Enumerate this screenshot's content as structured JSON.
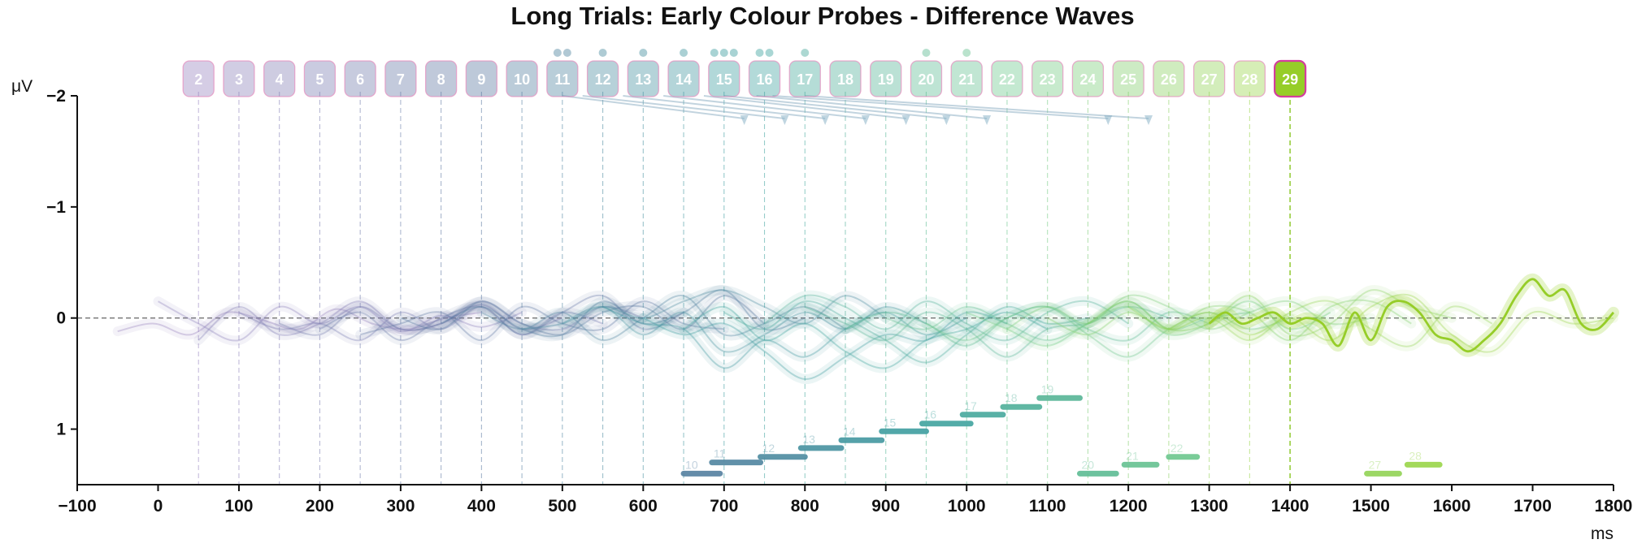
{
  "chart_data": {
    "type": "line",
    "title": "Long Trials: Early Colour Probes - Difference Waves",
    "xlabel": "ms",
    "ylabel": "μV",
    "xlim": [
      -100,
      1800
    ],
    "ylim": [
      1.5,
      -2
    ],
    "y_inverted": true,
    "x_ticks": [
      -100,
      0,
      100,
      200,
      300,
      400,
      500,
      600,
      700,
      800,
      900,
      1000,
      1100,
      1200,
      1300,
      1400,
      1500,
      1600,
      1700,
      1800
    ],
    "y_ticks": [
      -2,
      -1,
      0,
      1
    ],
    "y_tick_labels": [
      "−2",
      "−1",
      "0",
      "1"
    ],
    "x_tick_labels": [
      "−100",
      "0",
      "100",
      "200",
      "300",
      "400",
      "500",
      "600",
      "700",
      "800",
      "900",
      "1000",
      "1100",
      "1200",
      "1300",
      "1400",
      "1500",
      "1600",
      "1700",
      "1800"
    ],
    "grid": false,
    "zero_line": true,
    "highlighted_probe": 29,
    "probes": [
      {
        "label": "2",
        "onset_ms": 50
      },
      {
        "label": "3",
        "onset_ms": 100
      },
      {
        "label": "4",
        "onset_ms": 150
      },
      {
        "label": "5",
        "onset_ms": 200
      },
      {
        "label": "6",
        "onset_ms": 250
      },
      {
        "label": "7",
        "onset_ms": 300
      },
      {
        "label": "8",
        "onset_ms": 350
      },
      {
        "label": "9",
        "onset_ms": 400
      },
      {
        "label": "10",
        "onset_ms": 450
      },
      {
        "label": "11",
        "onset_ms": 500
      },
      {
        "label": "12",
        "onset_ms": 550
      },
      {
        "label": "13",
        "onset_ms": 600
      },
      {
        "label": "14",
        "onset_ms": 650
      },
      {
        "label": "15",
        "onset_ms": 700
      },
      {
        "label": "16",
        "onset_ms": 750
      },
      {
        "label": "17",
        "onset_ms": 800
      },
      {
        "label": "18",
        "onset_ms": 850
      },
      {
        "label": "19",
        "onset_ms": 900
      },
      {
        "label": "20",
        "onset_ms": 950
      },
      {
        "label": "21",
        "onset_ms": 1000
      },
      {
        "label": "22",
        "onset_ms": 1050
      },
      {
        "label": "23",
        "onset_ms": 1100
      },
      {
        "label": "24",
        "onset_ms": 1150
      },
      {
        "label": "25",
        "onset_ms": 1200
      },
      {
        "label": "26",
        "onset_ms": 1250
      },
      {
        "label": "27",
        "onset_ms": 1300
      },
      {
        "label": "28",
        "onset_ms": 1350
      },
      {
        "label": "29",
        "onset_ms": 1400
      }
    ],
    "probe_dots": [
      {
        "probe": "11",
        "count": 2
      },
      {
        "probe": "12",
        "count": 1
      },
      {
        "probe": "13",
        "count": 1
      },
      {
        "probe": "14",
        "count": 1
      },
      {
        "probe": "15",
        "count": 3
      },
      {
        "probe": "16",
        "count": 2
      },
      {
        "probe": "17",
        "count": 1
      },
      {
        "probe": "20",
        "count": 1
      },
      {
        "probe": "21",
        "count": 1
      }
    ],
    "arrows": [
      {
        "from_ms": 500,
        "to_ms": 725
      },
      {
        "from_ms": 525,
        "to_ms": 775
      },
      {
        "from_ms": 575,
        "to_ms": 825
      },
      {
        "from_ms": 625,
        "to_ms": 875
      },
      {
        "from_ms": 675,
        "to_ms": 925
      },
      {
        "from_ms": 700,
        "to_ms": 975
      },
      {
        "from_ms": 740,
        "to_ms": 1025
      },
      {
        "from_ms": 760,
        "to_ms": 1175
      },
      {
        "from_ms": 800,
        "to_ms": 1225
      }
    ],
    "significance_segments": [
      {
        "label": "10",
        "start": 650,
        "end": 695,
        "y": 1.4
      },
      {
        "label": "11",
        "start": 685,
        "end": 745,
        "y": 1.3
      },
      {
        "label": "12",
        "start": 745,
        "end": 800,
        "y": 1.25
      },
      {
        "label": "13",
        "start": 795,
        "end": 845,
        "y": 1.17
      },
      {
        "label": "14",
        "start": 845,
        "end": 895,
        "y": 1.1
      },
      {
        "label": "15",
        "start": 895,
        "end": 950,
        "y": 1.02
      },
      {
        "label": "16",
        "start": 945,
        "end": 1005,
        "y": 0.95
      },
      {
        "label": "17",
        "start": 995,
        "end": 1045,
        "y": 0.87
      },
      {
        "label": "18",
        "start": 1045,
        "end": 1090,
        "y": 0.8
      },
      {
        "label": "19",
        "start": 1090,
        "end": 1140,
        "y": 0.72
      },
      {
        "label": "20",
        "start": 1140,
        "end": 1185,
        "y": 1.4
      },
      {
        "label": "21",
        "start": 1195,
        "end": 1235,
        "y": 1.32
      },
      {
        "label": "22",
        "start": 1250,
        "end": 1285,
        "y": 1.25
      },
      {
        "label": "27",
        "start": 1495,
        "end": 1535,
        "y": 1.4
      },
      {
        "label": "28",
        "start": 1545,
        "end": 1585,
        "y": 1.32
      }
    ],
    "series": [
      {
        "label": "2",
        "t_start": -50,
        "t_end": 400,
        "values": [
          0.12,
          0.05,
          0.15,
          -0.05,
          0.02,
          0.1,
          -0.08,
          0.05,
          0.1,
          0.0,
          -0.05
        ]
      },
      {
        "label": "3",
        "t_start": 0,
        "t_end": 450,
        "values": [
          -0.15,
          0.05,
          0.2,
          -0.1,
          0.05,
          -0.1,
          0.12,
          -0.02,
          0.08,
          -0.05
        ]
      },
      {
        "label": "4",
        "t_start": 50,
        "t_end": 500,
        "values": [
          0.2,
          -0.1,
          0.15,
          0.05,
          -0.15,
          0.1,
          0.05,
          -0.12,
          0.1,
          0.0
        ]
      },
      {
        "label": "5",
        "t_start": 100,
        "t_end": 550,
        "values": [
          -0.05,
          0.1,
          0.05,
          0.2,
          -0.05,
          0.1,
          -0.1,
          0.15,
          -0.05,
          0.05
        ]
      },
      {
        "label": "6",
        "t_start": 150,
        "t_end": 600,
        "values": [
          0.05,
          0.15,
          -0.1,
          0.1,
          0.05,
          -0.15,
          0.05,
          0.1,
          -0.1,
          0.0
        ]
      },
      {
        "label": "7",
        "t_start": 200,
        "t_end": 650,
        "values": [
          0.1,
          -0.05,
          0.2,
          0.0,
          -0.1,
          0.15,
          -0.05,
          -0.2,
          0.1,
          -0.05
        ]
      },
      {
        "label": "8",
        "t_start": 250,
        "t_end": 700,
        "values": [
          0.15,
          0.05,
          -0.05,
          0.2,
          -0.1,
          0.05,
          0.1,
          -0.15,
          0.05,
          0.1
        ]
      },
      {
        "label": "9",
        "t_start": 300,
        "t_end": 750,
        "values": [
          0.0,
          0.1,
          -0.15,
          0.05,
          0.15,
          -0.05,
          -0.1,
          0.1,
          -0.2,
          0.05
        ]
      },
      {
        "label": "10",
        "t_start": 350,
        "t_end": 800,
        "values": [
          0.05,
          -0.1,
          0.1,
          0.15,
          -0.15,
          0.05,
          -0.05,
          -0.25,
          0.1,
          0.0
        ]
      },
      {
        "label": "11",
        "t_start": 400,
        "t_end": 850,
        "values": [
          -0.05,
          0.1,
          -0.05,
          0.2,
          0.0,
          -0.2,
          0.15,
          0.05,
          -0.1,
          0.1
        ]
      },
      {
        "label": "12",
        "t_start": 450,
        "t_end": 900,
        "values": [
          0.1,
          0.05,
          -0.1,
          0.0,
          -0.15,
          -0.25,
          -0.1,
          0.05,
          -0.2,
          0.0
        ]
      },
      {
        "label": "13",
        "t_start": 500,
        "t_end": 950,
        "values": [
          0.05,
          -0.1,
          0.15,
          -0.05,
          0.3,
          0.15,
          -0.05,
          0.1,
          -0.1,
          0.05
        ]
      },
      {
        "label": "14",
        "t_start": 550,
        "t_end": 1000,
        "values": [
          -0.1,
          0.05,
          0.1,
          0.45,
          0.2,
          0.35,
          0.1,
          -0.05,
          0.15,
          0.0
        ]
      },
      {
        "label": "15",
        "t_start": 600,
        "t_end": 1050,
        "values": [
          0.0,
          0.15,
          0.05,
          0.3,
          0.55,
          0.35,
          0.15,
          0.2,
          -0.05,
          0.05
        ]
      },
      {
        "label": "16",
        "t_start": 650,
        "t_end": 1100,
        "values": [
          0.1,
          -0.1,
          0.2,
          0.05,
          0.3,
          0.45,
          0.2,
          0.1,
          -0.05,
          0.1
        ]
      },
      {
        "label": "17",
        "t_start": 700,
        "t_end": 1150,
        "values": [
          -0.05,
          0.1,
          -0.15,
          0.0,
          0.2,
          0.4,
          0.15,
          -0.1,
          0.05,
          0.0
        ]
      },
      {
        "label": "18",
        "t_start": 750,
        "t_end": 1200,
        "values": [
          0.05,
          -0.2,
          -0.1,
          0.1,
          -0.15,
          0.05,
          0.2,
          -0.05,
          -0.15,
          0.05
        ]
      },
      {
        "label": "19",
        "t_start": 800,
        "t_end": 1250,
        "values": [
          -0.1,
          0.05,
          0.2,
          -0.05,
          0.1,
          0.35,
          0.1,
          0.05,
          -0.1,
          0.0
        ]
      },
      {
        "label": "20",
        "t_start": 850,
        "t_end": 1300,
        "values": [
          0.1,
          -0.05,
          0.05,
          0.25,
          0.0,
          -0.1,
          0.1,
          0.2,
          -0.05,
          0.05
        ]
      },
      {
        "label": "21",
        "t_start": 900,
        "t_end": 1350,
        "values": [
          0.0,
          0.1,
          -0.1,
          0.05,
          0.2,
          0.05,
          -0.15,
          0.1,
          0.0,
          -0.05
        ]
      },
      {
        "label": "22",
        "t_start": 950,
        "t_end": 1400,
        "values": [
          0.05,
          0.2,
          0.0,
          -0.1,
          0.15,
          0.35,
          0.1,
          -0.05,
          0.1,
          0.0
        ]
      },
      {
        "label": "23",
        "t_start": 1000,
        "t_end": 1450,
        "values": [
          -0.05,
          0.1,
          0.25,
          0.05,
          -0.1,
          0.15,
          0.05,
          -0.15,
          0.1,
          -0.05
        ]
      },
      {
        "label": "24",
        "t_start": 1050,
        "t_end": 1500,
        "values": [
          0.1,
          -0.1,
          0.05,
          -0.2,
          -0.1,
          0.1,
          -0.05,
          -0.15,
          0.05,
          0.0
        ]
      },
      {
        "label": "25",
        "t_start": 1100,
        "t_end": 1550,
        "values": [
          0.0,
          0.15,
          -0.05,
          0.1,
          -0.1,
          -0.05,
          0.2,
          -0.1,
          -0.15,
          0.05
        ]
      },
      {
        "label": "26",
        "t_start": 1150,
        "t_end": 1600,
        "values": [
          0.05,
          -0.15,
          0.1,
          0.05,
          -0.2,
          0.15,
          0.05,
          -0.25,
          -0.1,
          0.0
        ]
      },
      {
        "label": "27",
        "t_start": 1200,
        "t_end": 1650,
        "values": [
          -0.1,
          0.1,
          0.0,
          0.2,
          -0.05,
          -0.15,
          0.1,
          0.25,
          -0.1,
          0.05
        ]
      },
      {
        "label": "28",
        "t_start": 1250,
        "t_end": 1800,
        "values": [
          0.1,
          -0.05,
          0.15,
          0.0,
          0.2,
          -0.1,
          -0.2,
          0.15,
          0.3,
          -0.05,
          0.05,
          0.0
        ]
      },
      {
        "label": "29",
        "t_start": 1300,
        "t_end": 1800,
        "values": [
          0.05,
          -0.05,
          0.05,
          0.0,
          -0.05,
          0.05,
          0.0,
          0.05,
          0.25,
          -0.05,
          0.2,
          -0.1,
          -0.15,
          -0.05,
          0.15,
          0.2,
          0.3,
          0.2,
          0.05,
          -0.2,
          -0.35,
          -0.2,
          -0.25,
          0.05,
          0.1,
          -0.05
        ]
      }
    ]
  }
}
